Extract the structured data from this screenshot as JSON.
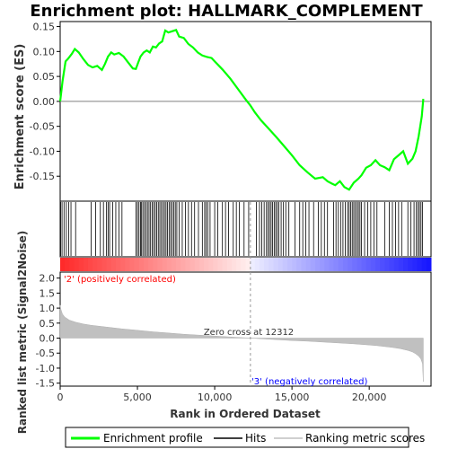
{
  "chart_data": {
    "type": "line",
    "title": "Enrichment plot: HALLMARK_COMPLEMENT",
    "es_panel": {
      "ylabel": "Enrichment score (ES)",
      "ylim": [
        -0.2,
        0.16
      ],
      "yticks": [
        0.15,
        0.1,
        0.05,
        0.0,
        -0.05,
        -0.1,
        -0.15
      ],
      "ytick_labels": [
        "0.15",
        "0.10",
        "0.05",
        "0.00",
        "-0.05",
        "-0.10",
        "-0.15"
      ],
      "series": [
        {
          "name": "Enrichment profile",
          "color": "#00ff00",
          "x": [
            0,
            150,
            350,
            500,
            750,
            950,
            1200,
            1500,
            1800,
            2100,
            2400,
            2700,
            2900,
            3100,
            3300,
            3500,
            3800,
            4100,
            4400,
            4700,
            4900,
            5050,
            5200,
            5400,
            5600,
            5800,
            6000,
            6200,
            6400,
            6600,
            6800,
            7000,
            7200,
            7500,
            7700,
            8000,
            8300,
            8600,
            8900,
            9200,
            9500,
            9800,
            10000,
            10500,
            11000,
            11500,
            12000,
            12300,
            12600,
            13000,
            13500,
            14000,
            14500,
            15000,
            15500,
            16000,
            16500,
            17000,
            17300,
            17600,
            17800,
            18100,
            18400,
            18700,
            19000,
            19300,
            19500,
            19800,
            20100,
            20400,
            20700,
            21000,
            21300,
            21600,
            21900,
            22200,
            22500,
            22800,
            23000,
            23200,
            23400,
            23500
          ],
          "y": [
            0.0,
            0.04,
            0.08,
            0.085,
            0.095,
            0.105,
            0.098,
            0.085,
            0.073,
            0.068,
            0.071,
            0.063,
            0.075,
            0.09,
            0.098,
            0.094,
            0.097,
            0.09,
            0.078,
            0.066,
            0.065,
            0.078,
            0.09,
            0.098,
            0.102,
            0.098,
            0.11,
            0.108,
            0.116,
            0.12,
            0.142,
            0.138,
            0.14,
            0.143,
            0.13,
            0.127,
            0.115,
            0.108,
            0.098,
            0.092,
            0.089,
            0.087,
            0.08,
            0.064,
            0.046,
            0.025,
            0.004,
            -0.008,
            -0.022,
            -0.038,
            -0.055,
            -0.072,
            -0.09,
            -0.108,
            -0.128,
            -0.142,
            -0.155,
            -0.152,
            -0.16,
            -0.165,
            -0.168,
            -0.16,
            -0.172,
            -0.177,
            -0.163,
            -0.155,
            -0.148,
            -0.133,
            -0.128,
            -0.118,
            -0.128,
            -0.132,
            -0.138,
            -0.116,
            -0.108,
            -0.1,
            -0.125,
            -0.115,
            -0.1,
            -0.07,
            -0.03,
            0.005
          ]
        }
      ]
    },
    "hits": {
      "name": "Hits",
      "color": "#000000",
      "positions": [
        30,
        120,
        250,
        400,
        550,
        700,
        1000,
        2000,
        2300,
        2600,
        2800,
        3000,
        3100,
        3200,
        3400,
        3600,
        3800,
        4000,
        4900,
        5000,
        5100,
        5200,
        5250,
        5350,
        5450,
        5550,
        5650,
        5750,
        5850,
        5950,
        6050,
        6150,
        6250,
        6350,
        6450,
        6550,
        6650,
        6750,
        6850,
        6950,
        7050,
        7150,
        7250,
        7350,
        7450,
        7550,
        7700,
        7900,
        8100,
        8300,
        8500,
        8700,
        8950,
        9200,
        9350,
        9450,
        9550,
        9700,
        10000,
        10200,
        10500,
        10700,
        10900,
        11200,
        11400,
        11600,
        11900,
        12200,
        12700,
        12900,
        13050,
        13200,
        13350,
        13450,
        13550,
        13650,
        13750,
        13850,
        13950,
        14050,
        14150,
        14300,
        14450,
        14600,
        14800,
        15200,
        15500,
        15700,
        15900,
        16100,
        16400,
        16700,
        16900,
        17100,
        17300,
        17700,
        17850,
        18000,
        18150,
        18300,
        18450,
        18600,
        18700,
        18800,
        18900,
        19000,
        19100,
        19200,
        19300,
        19400,
        19500,
        19700,
        19900,
        20100,
        20300,
        20500,
        21000,
        21300,
        21500,
        21700,
        21900,
        22100,
        22500,
        22700,
        22900,
        23050,
        23150,
        23250,
        23350,
        23450
      ]
    },
    "ranked_panel": {
      "name": "Ranking metric scores",
      "ylabel": "Ranked list metric (Signal2Noise)",
      "ylim": [
        -1.6,
        2.2
      ],
      "yticks": [
        2.0,
        1.5,
        1.0,
        0.5,
        0.0,
        -0.5,
        -1.0,
        -1.5
      ],
      "ytick_labels": [
        "2.0",
        "1.5",
        "1.0",
        "0.5",
        "0.0",
        "-0.5",
        "-1.0",
        "-1.5"
      ],
      "x": [
        0,
        50,
        150,
        300,
        600,
        1000,
        1500,
        2000,
        3000,
        4000,
        5000,
        6000,
        7000,
        8000,
        9000,
        10000,
        11000,
        12000,
        12312,
        13000,
        14000,
        15000,
        16000,
        17000,
        18000,
        19000,
        20000,
        20500,
        21000,
        21500,
        22000,
        22500,
        22800,
        23000,
        23200,
        23350,
        23450,
        23500
      ],
      "values": [
        1.1,
        0.95,
        0.8,
        0.7,
        0.6,
        0.53,
        0.47,
        0.43,
        0.37,
        0.31,
        0.26,
        0.21,
        0.17,
        0.13,
        0.1,
        0.07,
        0.04,
        0.01,
        0.0,
        -0.02,
        -0.05,
        -0.08,
        -0.1,
        -0.13,
        -0.16,
        -0.19,
        -0.23,
        -0.25,
        -0.28,
        -0.31,
        -0.35,
        -0.41,
        -0.46,
        -0.52,
        -0.6,
        -0.7,
        -0.85,
        -1.45
      ],
      "pos_label": "'2' (positively correlated)",
      "neg_label": "'3' (negatively correlated)",
      "zero_cross_label": "Zero cross at 12312",
      "zero_cross": 12312,
      "pos_color": "#ff0000",
      "neg_color": "#0000ff"
    },
    "xlabel": "Rank in Ordered Dataset",
    "xlim": [
      0,
      24000
    ],
    "xticks": [
      0,
      5000,
      10000,
      15000,
      20000
    ],
    "xtick_labels": [
      "0",
      "5,000",
      "10,000",
      "15,000",
      "20,000"
    ],
    "legend": {
      "placement": "bottom",
      "items": [
        {
          "label": "Enrichment profile",
          "color": "#00ff00"
        },
        {
          "label": "Hits",
          "color": "#000000"
        },
        {
          "label": "Ranking metric scores",
          "color": "#c0c0c0"
        }
      ]
    }
  }
}
